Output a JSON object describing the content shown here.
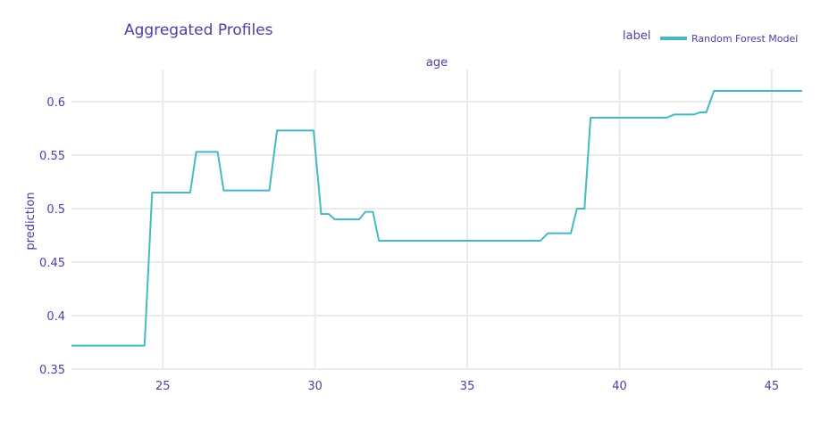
{
  "chart_data": {
    "type": "line",
    "title": "Aggregated Profiles",
    "facet_label": "age",
    "ylabel": "prediction",
    "xlabel": "",
    "legend": {
      "title": "label",
      "placement": "top-right"
    },
    "xlim": [
      22,
      46
    ],
    "ylim": [
      0.35,
      0.63
    ],
    "x_ticks": [
      25,
      30,
      35,
      40,
      45
    ],
    "y_ticks": [
      0.35,
      0.4,
      0.45,
      0.5,
      0.55,
      0.6
    ],
    "y_tick_labels": [
      "0.35",
      "0.4",
      "0.45",
      "0.5",
      "0.55",
      "0.6"
    ],
    "grid": true,
    "series": [
      {
        "name": "Random Forest Model",
        "color": "#46bac2",
        "x": [
          22,
          24.4,
          24.65,
          25.9,
          26.1,
          26.8,
          27.0,
          28.5,
          28.75,
          29.95,
          30.2,
          30.45,
          30.65,
          31.45,
          31.65,
          31.9,
          32.1,
          37.4,
          37.65,
          38.4,
          38.6,
          38.85,
          39.05,
          41.55,
          41.8,
          42.45,
          42.65,
          42.85,
          43.1,
          46
        ],
        "y": [
          0.372,
          0.372,
          0.515,
          0.515,
          0.553,
          0.553,
          0.517,
          0.517,
          0.573,
          0.573,
          0.495,
          0.495,
          0.49,
          0.49,
          0.497,
          0.497,
          0.47,
          0.47,
          0.477,
          0.477,
          0.5,
          0.5,
          0.585,
          0.585,
          0.588,
          0.588,
          0.59,
          0.59,
          0.61,
          0.61
        ]
      }
    ]
  }
}
